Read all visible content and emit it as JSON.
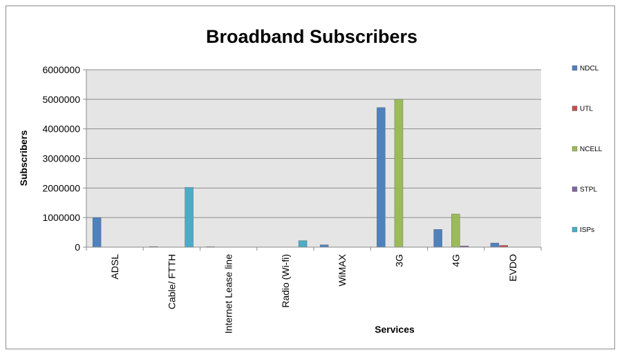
{
  "chart_data": {
    "type": "bar",
    "title": "Broadband Subscribers",
    "xlabel": "Services",
    "ylabel": "Subscribers",
    "ylim": [
      0,
      6000000
    ],
    "yticks": [
      "0",
      "1000000",
      "2000000",
      "3000000",
      "4000000",
      "5000000",
      "6000000"
    ],
    "categories": [
      "ADSL",
      "Cable/ FTTH",
      "Internet Lease line",
      "Radio (Wi-fi)",
      "WiMAX",
      "3G",
      "4G",
      "EVDO"
    ],
    "series": [
      {
        "name": "NDCL",
        "color": "#4f81bd",
        "values": [
          1000000,
          20000,
          15000,
          0,
          80000,
          4720000,
          600000,
          140000
        ]
      },
      {
        "name": "UTL",
        "color": "#c0504d",
        "values": [
          0,
          0,
          0,
          0,
          0,
          0,
          0,
          60000
        ]
      },
      {
        "name": "NCELL",
        "color": "#9bbb59",
        "values": [
          0,
          0,
          0,
          0,
          0,
          5000000,
          1120000,
          0
        ]
      },
      {
        "name": "STPL",
        "color": "#8064a2",
        "values": [
          0,
          0,
          0,
          0,
          0,
          0,
          40000,
          0
        ]
      },
      {
        "name": "ISPs",
        "color": "#4bacc6",
        "values": [
          0,
          2020000,
          0,
          220000,
          0,
          0,
          0,
          0
        ]
      }
    ],
    "grid": true,
    "plot_background": "#e5e5e5",
    "legend_position": "right"
  }
}
